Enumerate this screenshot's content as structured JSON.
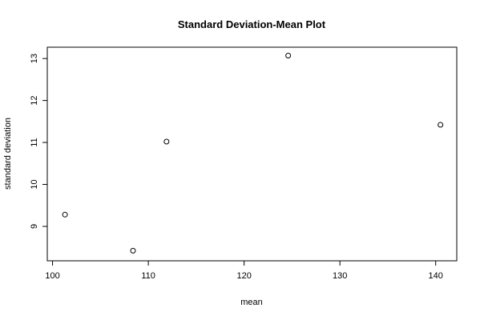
{
  "chart_data": {
    "type": "scatter",
    "title": "Standard Deviation-Mean Plot",
    "xlabel": "mean",
    "ylabel": "standard deviation",
    "xlim": [
      99.45,
      142.2
    ],
    "ylim": [
      8.18,
      13.27
    ],
    "x_ticks": [
      100,
      110,
      120,
      130,
      140
    ],
    "y_ticks": [
      9,
      10,
      11,
      12,
      13
    ],
    "grid": false,
    "legend": "none",
    "points": [
      {
        "x": 101.3,
        "y": 9.28
      },
      {
        "x": 108.4,
        "y": 8.42
      },
      {
        "x": 111.9,
        "y": 11.02
      },
      {
        "x": 124.6,
        "y": 13.07
      },
      {
        "x": 140.5,
        "y": 11.42
      }
    ]
  }
}
